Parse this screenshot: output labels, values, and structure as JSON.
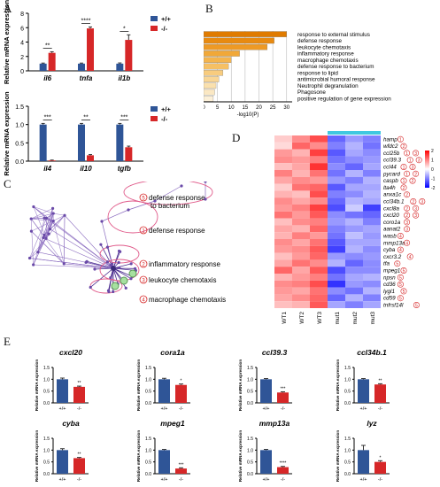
{
  "colors": {
    "wt": "#2f5597",
    "mut": "#d62728",
    "err": "#333333"
  },
  "panels": {
    "a": {
      "label": "A",
      "top": {
        "ylabel": "Relative mRNA expression",
        "ylim": [
          0,
          8
        ],
        "ticks": [
          "0",
          "2",
          "4",
          "6",
          "8"
        ],
        "legend": [
          "+/+",
          "-/-"
        ],
        "genes": [
          "il6",
          "tnfa",
          "il1b"
        ],
        "wt": [
          1.0,
          1.0,
          1.0
        ],
        "wt_err": [
          0.08,
          0.08,
          0.1
        ],
        "mut": [
          2.5,
          5.9,
          4.3
        ],
        "mut_err": [
          0.15,
          0.2,
          0.7
        ],
        "sig": [
          "**",
          "****",
          "*"
        ]
      },
      "bottom": {
        "ylabel": "Relative mRNA expression",
        "ylim": [
          0,
          1.5
        ],
        "ticks": [
          "0.0",
          "0.5",
          "1.0",
          "1.5"
        ],
        "legend": [
          "+/+",
          "-/-"
        ],
        "genes": [
          "il4",
          "il10",
          "tgfb"
        ],
        "wt": [
          1.0,
          1.0,
          1.0
        ],
        "wt_err": [
          0.03,
          0.03,
          0.03
        ],
        "mut": [
          0.02,
          0.16,
          0.38
        ],
        "mut_err": [
          0.01,
          0.02,
          0.03
        ],
        "sig": [
          "***",
          "**",
          "***"
        ]
      }
    },
    "b": {
      "label": "B",
      "terms": [
        {
          "name": "response to external stimulus",
          "value": 30,
          "color": "#e07b00"
        },
        {
          "name": "defense response",
          "value": 25.5,
          "color": "#e88a10"
        },
        {
          "name": "leukocyte chemotaxis",
          "value": 23,
          "color": "#ee9a25"
        },
        {
          "name": "inflammatory response",
          "value": 13,
          "color": "#f1a838"
        },
        {
          "name": "macrophage chemotaxis",
          "value": 10,
          "color": "#f4b44d"
        },
        {
          "name": "defense response to bacterium",
          "value": 9,
          "color": "#f6c064"
        },
        {
          "name": "response to lipid",
          "value": 7,
          "color": "#f8cc7e"
        },
        {
          "name": "antimicrobial humoral response",
          "value": 5.5,
          "color": "#f9d695"
        },
        {
          "name": "Neutrophil degranulation",
          "value": 4.5,
          "color": "#fae0ad"
        },
        {
          "name": "Phagosone",
          "value": 4,
          "color": "#fbe8c3"
        },
        {
          "name": "positive regulation of gene expression",
          "value": 3.5,
          "color": "#fcf0d8"
        }
      ],
      "ticks": [
        "0",
        "5",
        "10",
        "15",
        "20",
        "25",
        "30"
      ],
      "xlabel": "-log10(P)"
    },
    "c": {
      "label": "C",
      "annotations": [
        {
          "n": "5",
          "text": "defense response\nto bacterium"
        },
        {
          "n": "1",
          "text": "defense response"
        },
        {
          "n": "2",
          "text": "inflammatory response"
        },
        {
          "n": "3",
          "text": "leukocyte chemotaxis"
        },
        {
          "n": "4",
          "text": "macrophage chemotaxis"
        }
      ]
    },
    "d": {
      "label": "D",
      "columns": [
        "WT1",
        "WT2",
        "WT3",
        "mut1",
        "mut2",
        "mut3"
      ],
      "legend_ticks": [
        "2",
        "1",
        "0",
        "-1",
        "-2"
      ],
      "rows": [
        {
          "gene": "hamp",
          "tags": [
            "1"
          ],
          "v": [
            0.4,
            0.9,
            1.4,
            -1.2,
            -0.8,
            -1.0
          ]
        },
        {
          "gene": "wfdc2",
          "tags": [
            "2"
          ],
          "v": [
            0.3,
            1.2,
            0.9,
            -1.0,
            -0.6,
            -1.1
          ]
        },
        {
          "gene": "ccl25b",
          "tags": [
            "1",
            "3"
          ],
          "v": [
            0.8,
            0.6,
            1.5,
            -1.3,
            -0.7,
            -0.9
          ]
        },
        {
          "gene": "ccl39.3",
          "tags": [
            "1",
            "3"
          ],
          "v": [
            0.9,
            0.8,
            1.0,
            -1.1,
            -0.9,
            -0.8
          ]
        },
        {
          "gene": "ccl44",
          "tags": [
            "1",
            "3"
          ],
          "v": [
            0.5,
            0.7,
            1.6,
            -0.9,
            -1.2,
            -0.7
          ]
        },
        {
          "gene": "pycard",
          "tags": [
            "1",
            "2"
          ],
          "v": [
            1.0,
            0.6,
            1.1,
            -1.1,
            -0.6,
            -1.0
          ]
        },
        {
          "gene": "caspb",
          "tags": [
            "1",
            "2"
          ],
          "v": [
            0.7,
            0.9,
            0.8,
            -0.8,
            -1.0,
            -0.6
          ]
        },
        {
          "gene": "lta4h",
          "tags": [
            "2"
          ],
          "v": [
            0.4,
            1.1,
            1.2,
            -1.3,
            -0.7,
            -0.7
          ]
        },
        {
          "gene": "anxa1c",
          "tags": [
            "2"
          ],
          "v": [
            0.6,
            0.5,
            1.4,
            -1.0,
            -0.9,
            -0.6
          ]
        },
        {
          "gene": "ccl34b.1",
          "tags": [
            "2",
            "3"
          ],
          "v": [
            0.9,
            0.7,
            0.9,
            -1.2,
            -0.6,
            -0.7
          ]
        },
        {
          "gene": "cxcl8a",
          "tags": [
            "2",
            "3"
          ],
          "v": [
            0.8,
            1.0,
            1.5,
            -1.4,
            -0.4,
            -1.5
          ]
        },
        {
          "gene": "cxcl20",
          "tags": [
            "2",
            "3"
          ],
          "v": [
            1.1,
            0.8,
            1.3,
            -0.9,
            -1.1,
            -1.2
          ]
        },
        {
          "gene": "coro1a",
          "tags": [
            "3"
          ],
          "v": [
            0.5,
            0.9,
            1.0,
            -0.8,
            -0.6,
            -1.0
          ]
        },
        {
          "gene": "aanat2",
          "tags": [
            "3"
          ],
          "v": [
            0.7,
            0.6,
            1.2,
            -1.0,
            -0.8,
            -0.7
          ]
        },
        {
          "gene": "wasb",
          "tags": [
            "4"
          ],
          "v": [
            0.6,
            1.0,
            0.8,
            -1.1,
            -0.5,
            -0.8
          ]
        },
        {
          "gene": "mmp13a",
          "tags": [
            "4"
          ],
          "v": [
            0.9,
            0.7,
            1.1,
            -1.3,
            -0.7,
            -0.7
          ]
        },
        {
          "gene": "cyba",
          "tags": [
            "4"
          ],
          "v": [
            0.8,
            0.9,
            1.3,
            -1.5,
            -0.6,
            -0.9
          ]
        },
        {
          "gene": "cxcr3.2",
          "tags": [
            "4"
          ],
          "v": [
            0.5,
            0.8,
            1.2,
            -0.8,
            -0.9,
            -0.8
          ]
        },
        {
          "gene": "tfa",
          "tags": [
            "5"
          ],
          "v": [
            0.7,
            1.1,
            0.9,
            -0.6,
            -1.2,
            -0.9
          ]
        },
        {
          "gene": "mpeg1",
          "tags": [
            "5"
          ],
          "v": [
            1.2,
            0.7,
            1.3,
            -1.4,
            -0.9,
            -0.9
          ]
        },
        {
          "gene": "npsn",
          "tags": [
            "5"
          ],
          "v": [
            0.6,
            0.8,
            1.0,
            -1.1,
            -0.7,
            -0.6
          ]
        },
        {
          "gene": "cd36",
          "tags": [
            "5"
          ],
          "v": [
            0.9,
            1.0,
            1.4,
            -1.6,
            -0.8,
            -0.9
          ]
        },
        {
          "gene": "lygl1",
          "tags": [
            "5"
          ],
          "v": [
            0.8,
            0.7,
            1.1,
            -0.9,
            -1.1,
            -0.6
          ]
        },
        {
          "gene": "cd59",
          "tags": [
            "5"
          ],
          "v": [
            0.7,
            0.9,
            1.2,
            -1.2,
            -0.6,
            -1.0
          ]
        },
        {
          "gene": "tnfrsf14l",
          "tags": [
            "5"
          ],
          "v": [
            0.5,
            0.6,
            1.3,
            -0.7,
            -1.0,
            -0.7
          ]
        }
      ]
    },
    "e": {
      "label": "E",
      "ylabel": "Relative mRNA expression",
      "groups": [
        "+/+",
        "-/-"
      ],
      "plots": [
        {
          "gene": "cxcl20",
          "ticks": [
            "0.0",
            "0.5",
            "1.0",
            "1.5"
          ],
          "ymax": 1.5,
          "wt": 1.0,
          "wt_err": 0.05,
          "mut": 0.68,
          "mut_err": 0.03,
          "sig": "**"
        },
        {
          "gene": "cora1a",
          "ticks": [
            "0.0",
            "0.5",
            "1.0",
            "1.5"
          ],
          "ymax": 1.5,
          "wt": 1.0,
          "wt_err": 0.04,
          "mut": 0.76,
          "mut_err": 0.04,
          "sig": "*"
        },
        {
          "gene": "ccl39.3",
          "ticks": [
            "0.0",
            "0.5",
            "1.0",
            "1.5"
          ],
          "ymax": 1.5,
          "wt": 1.0,
          "wt_err": 0.03,
          "mut": 0.44,
          "mut_err": 0.03,
          "sig": "***"
        },
        {
          "gene": "ccl34b.1",
          "ticks": [
            "0.0",
            "0.5",
            "1.0",
            "1.5"
          ],
          "ymax": 1.5,
          "wt": 1.0,
          "wt_err": 0.03,
          "mut": 0.78,
          "mut_err": 0.03,
          "sig": "**"
        },
        {
          "gene": "cyba",
          "ticks": [
            "0.0",
            "0.5",
            "1.0",
            "1.5"
          ],
          "ymax": 1.5,
          "wt": 1.0,
          "wt_err": 0.06,
          "mut": 0.66,
          "mut_err": 0.03,
          "sig": "**"
        },
        {
          "gene": "mpeg1",
          "ticks": [
            "0.0",
            "0.5",
            "1.0",
            "1.5"
          ],
          "ymax": 1.5,
          "wt": 1.0,
          "wt_err": 0.03,
          "mut": 0.22,
          "mut_err": 0.03,
          "sig": "***"
        },
        {
          "gene": "mmp13a",
          "ticks": [
            "0.0",
            "0.5",
            "1.0",
            "1.5"
          ],
          "ymax": 1.5,
          "wt": 1.0,
          "wt_err": 0.03,
          "mut": 0.28,
          "mut_err": 0.03,
          "sig": "****"
        },
        {
          "gene": "lyz",
          "ticks": [
            "0.0",
            "0.5",
            "1.0",
            "1.5"
          ],
          "ymax": 1.5,
          "wt": 1.0,
          "wt_err": 0.2,
          "mut": 0.5,
          "mut_err": 0.05,
          "sig": "*"
        }
      ]
    }
  }
}
